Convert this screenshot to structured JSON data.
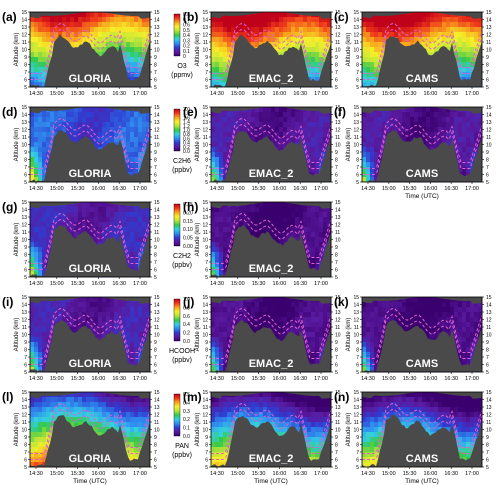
{
  "chart_data": {
    "type": "heatmap",
    "x_ticks": [
      "14:30",
      "15:00",
      "15:30",
      "16:00",
      "16:30",
      "17:00"
    ],
    "x_range": [
      "14:20",
      "17:25"
    ],
    "x_label": "Time (UTC)",
    "y_label": "Altitude (km)",
    "y_ticks": [
      5,
      6,
      7,
      8,
      9,
      10,
      11,
      12,
      13,
      14,
      15
    ],
    "y_range": [
      5,
      15
    ],
    "rows": [
      {
        "species": "O3",
        "unit": "(ppmv)",
        "cbar_ticks": [
          "0",
          "0.1",
          "0.2",
          "0.3",
          "0.4",
          "0.5",
          "0.6",
          "0.7",
          "0.8"
        ],
        "panels": [
          {
            "letter": "(a)",
            "model": "GLORIA",
            "level": 0.5
          },
          {
            "letter": "(b)",
            "model": "EMAC_2",
            "level": 0.6
          },
          {
            "letter": "(c)",
            "model": "CAMS",
            "level": 0.58
          }
        ]
      },
      {
        "species": "C2H6",
        "unit": "(ppbv)",
        "cbar_ticks": [
          "0.0",
          "0.2",
          "0.4",
          "0.6",
          "0.8",
          "1.0",
          "1.2",
          "1.4",
          "1.6",
          "1.8",
          "2.0"
        ],
        "panels": [
          {
            "letter": "(d)",
            "model": "GLORIA",
            "level": 0.22
          },
          {
            "letter": "(e)",
            "model": "EMAC_2",
            "level": 0.08
          },
          {
            "letter": "(f)",
            "model": "CAMS",
            "level": 0.07
          }
        ]
      },
      {
        "species": "C2H2",
        "unit": "(ppbv)",
        "cbar_ticks": [
          "0.00",
          "0.05",
          "0.10",
          "0.15",
          "0.20",
          "0.25"
        ],
        "panels": [
          {
            "letter": "(g)",
            "model": "GLORIA",
            "level": 0.12
          },
          {
            "letter": "(h)",
            "model": "EMAC_2",
            "level": 0.02
          }
        ]
      },
      {
        "species": "HCOOH",
        "unit": "(ppbv)",
        "cbar_ticks": [
          "0.0",
          "0.2",
          "0.4",
          "0.6",
          "0.8",
          "1.0"
        ],
        "panels": [
          {
            "letter": "(i)",
            "model": "GLORIA",
            "level": 0.1
          },
          {
            "letter": "(j)",
            "model": "EMAC_2",
            "level": 0.03
          },
          {
            "letter": "(k)",
            "model": "CAMS",
            "level": 0.02
          }
        ]
      },
      {
        "species": "PAN",
        "unit": "(ppbv)",
        "cbar_ticks": [
          "0.0",
          "0.1",
          "0.2",
          "0.3",
          "0.4",
          "0.5"
        ],
        "panels": [
          {
            "letter": "(l)",
            "model": "GLORIA",
            "level": 0.45
          },
          {
            "letter": "(m)",
            "model": "EMAC_2",
            "level": 0.32
          },
          {
            "letter": "(n)",
            "model": "CAMS",
            "level": 0.28
          }
        ]
      }
    ],
    "colormap": [
      "#3a006e",
      "#5a1aa0",
      "#2f3cd0",
      "#2f8ff0",
      "#35d0e0",
      "#35c84a",
      "#b8e43a",
      "#f5ef2a",
      "#f7a51c",
      "#ef3a1b",
      "#c0001a"
    ],
    "terrain_color": "#4a4a4a",
    "contour_color": "#e060d0"
  }
}
